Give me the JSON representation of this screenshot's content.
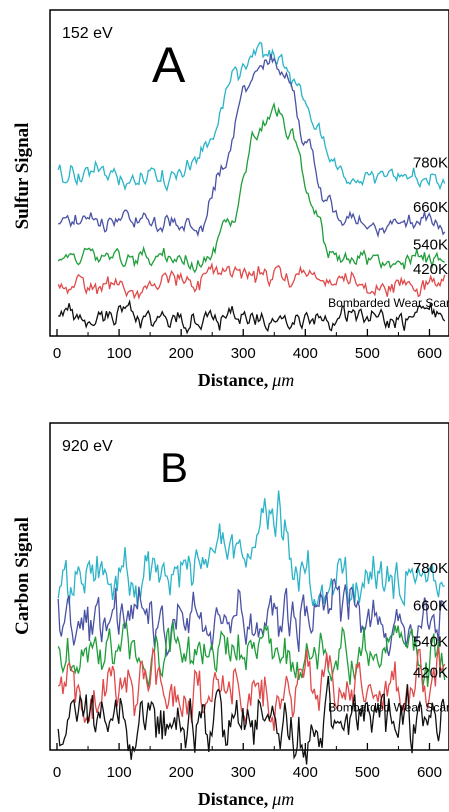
{
  "chart_data": [
    {
      "type": "line",
      "panel_letter": "A",
      "energy_label": "152 eV",
      "ylabel": "Sulfur Signal",
      "xlabel": "Distance,",
      "xlabel_unit": "μm",
      "xlim": [
        0,
        625
      ],
      "x_ticks": [
        0,
        100,
        200,
        300,
        400,
        500,
        600
      ],
      "x_tick_labels": [
        "0",
        "100",
        "200",
        "300",
        "400",
        "500",
        "600"
      ],
      "y_ticks": false,
      "grid": false,
      "series": [
        {
          "name": "780K",
          "color": "#2bb3c7",
          "baseline": 0.9,
          "amp": 0.8,
          "noise": 0.06,
          "bump": [
            {
              "x": 200,
              "y": 0.0
            },
            {
              "x": 245,
              "y": 0.3
            },
            {
              "x": 285,
              "y": 0.78
            },
            {
              "x": 320,
              "y": 0.95
            },
            {
              "x": 350,
              "y": 0.95
            },
            {
              "x": 385,
              "y": 0.75
            },
            {
              "x": 420,
              "y": 0.35
            },
            {
              "x": 450,
              "y": 0.08
            },
            {
              "x": 480,
              "y": 0.0
            }
          ]
        },
        {
          "name": "660K",
          "color": "#4a52a3",
          "baseline": 0.63,
          "amp": 1.0,
          "noise": 0.05,
          "bump": [
            {
              "x": 230,
              "y": 0.0
            },
            {
              "x": 270,
              "y": 0.35
            },
            {
              "x": 305,
              "y": 0.82
            },
            {
              "x": 340,
              "y": 0.98
            },
            {
              "x": 370,
              "y": 0.88
            },
            {
              "x": 400,
              "y": 0.5
            },
            {
              "x": 430,
              "y": 0.12
            },
            {
              "x": 460,
              "y": 0.0
            }
          ]
        },
        {
          "name": "540K",
          "color": "#1f9e3a",
          "baseline": 0.4,
          "amp": 0.95,
          "noise": 0.05,
          "bump": [
            {
              "x": 240,
              "y": 0.0
            },
            {
              "x": 280,
              "y": 0.28
            },
            {
              "x": 320,
              "y": 0.8
            },
            {
              "x": 350,
              "y": 0.98
            },
            {
              "x": 380,
              "y": 0.8
            },
            {
              "x": 410,
              "y": 0.35
            },
            {
              "x": 440,
              "y": 0.05
            },
            {
              "x": 470,
              "y": 0.0
            }
          ]
        },
        {
          "name": "420K",
          "color": "#e04a4a",
          "baseline": 0.25,
          "amp": 0.1,
          "noise": 0.06,
          "bump": [
            {
              "x": 150,
              "y": 0.0
            },
            {
              "x": 350,
              "y": 0.5
            },
            {
              "x": 420,
              "y": 0.0
            }
          ]
        },
        {
          "name": "Bombarded Wear Scar",
          "color": "#111111",
          "baseline": 0.05,
          "amp": 0.0,
          "noise": 0.06,
          "bump": []
        }
      ]
    },
    {
      "type": "line",
      "panel_letter": "B",
      "energy_label": "920 eV",
      "ylabel": "Carbon Signal",
      "xlabel": "Distance,",
      "xlabel_unit": "μm",
      "xlim": [
        0,
        625
      ],
      "x_ticks": [
        0,
        100,
        200,
        300,
        400,
        500,
        600
      ],
      "x_tick_labels": [
        "0",
        "100",
        "200",
        "300",
        "400",
        "500",
        "600"
      ],
      "y_ticks": false,
      "grid": false,
      "series": [
        {
          "name": "780K",
          "color": "#2bb3c7",
          "baseline": 0.95,
          "amp": 0.4,
          "noise": 0.16,
          "bump": [
            {
              "x": 230,
              "y": 0.0
            },
            {
              "x": 290,
              "y": 0.55
            },
            {
              "x": 355,
              "y": 1.0
            },
            {
              "x": 390,
              "y": 0.2
            },
            {
              "x": 420,
              "y": 0.0
            }
          ]
        },
        {
          "name": "660K",
          "color": "#4a52a3",
          "baseline": 0.72,
          "amp": 0.0,
          "noise": 0.16,
          "bump": []
        },
        {
          "name": "540K",
          "color": "#1f9e3a",
          "baseline": 0.5,
          "amp": 0.0,
          "noise": 0.15,
          "bump": []
        },
        {
          "name": "420K",
          "color": "#e04a4a",
          "baseline": 0.31,
          "amp": 0.0,
          "noise": 0.16,
          "bump": []
        },
        {
          "name": "Bombarded Wear Scar",
          "color": "#111111",
          "baseline": 0.1,
          "amp": 0.0,
          "noise": 0.17,
          "bump": []
        }
      ]
    }
  ]
}
